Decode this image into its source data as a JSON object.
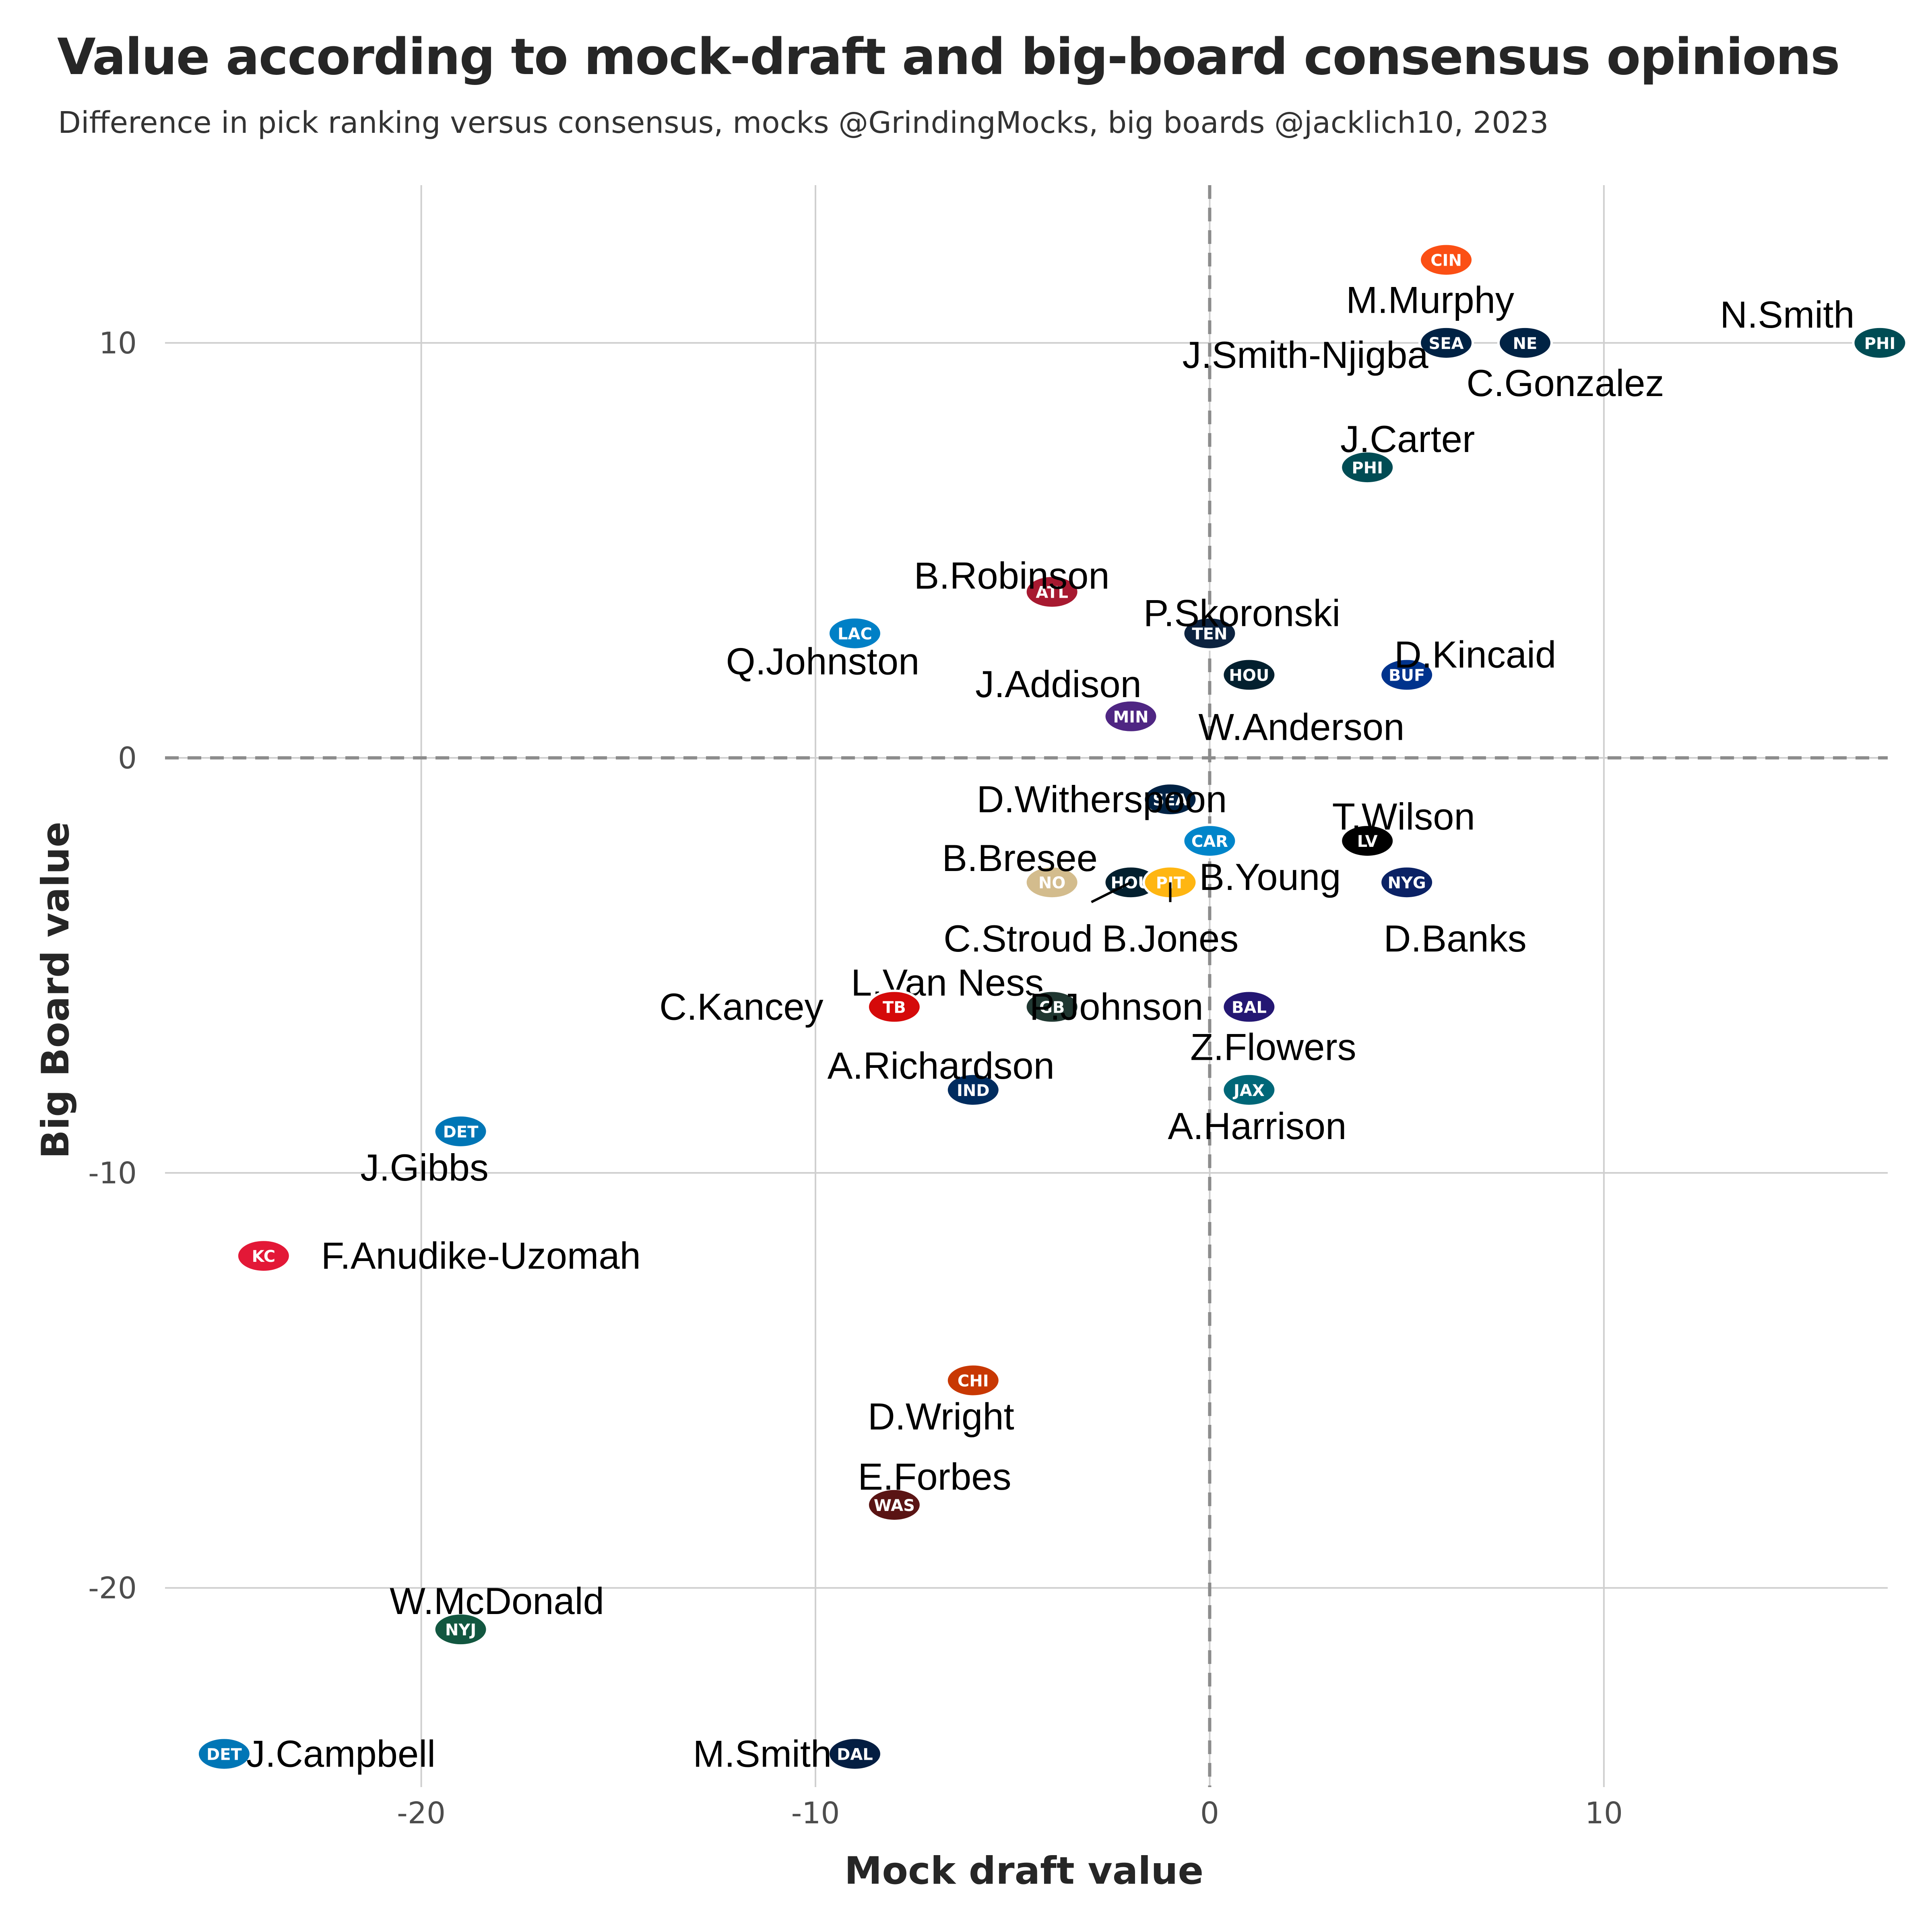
{
  "title": "Value according to mock-draft and big-board consensus opinions",
  "subtitle": "Difference in pick ranking versus consensus, mocks @GrindingMocks, big boards @jacklich10, 2023",
  "chart_data": {
    "type": "scatter",
    "title": "Value according to mock-draft and big-board consensus opinions",
    "subtitle": "Difference in pick ranking versus consensus, mocks @GrindingMocks, big boards @jacklich10, 2023",
    "xlabel": "Mock draft value",
    "ylabel": "Big Board value",
    "xlim": [
      -26.5,
      17.2
    ],
    "ylim": [
      -24.8,
      13.8
    ],
    "xticks": [
      -20,
      -10,
      0,
      10
    ],
    "yticks": [
      10,
      0,
      -10,
      -20
    ],
    "grid": true,
    "reference_lines": [
      {
        "axis": "x",
        "value": 0,
        "style": "dashed"
      },
      {
        "axis": "y",
        "value": 0,
        "style": "dashed"
      }
    ],
    "marker": "team-logo",
    "points": [
      {
        "label": "N.Smith",
        "team": "PHI",
        "color": "#004C54",
        "x": 17,
        "y": 10
      },
      {
        "label": "M.Murphy",
        "team": "CIN",
        "color": "#FB4F14",
        "x": 6,
        "y": 12
      },
      {
        "label": "J.Smith-Njigba",
        "team": "SEA",
        "color": "#002244",
        "x": 6,
        "y": 10
      },
      {
        "label": "C.Gonzalez",
        "team": "NE",
        "color": "#002244",
        "x": 8,
        "y": 10
      },
      {
        "label": "J.Carter",
        "team": "PHI",
        "color": "#004C54",
        "x": 4,
        "y": 7
      },
      {
        "label": "B.Robinson",
        "team": "ATL",
        "color": "#A71930",
        "x": -4,
        "y": 4
      },
      {
        "label": "Q.Johnston",
        "team": "LAC",
        "color": "#0080C6",
        "x": -9,
        "y": 3
      },
      {
        "label": "P.Skoronski",
        "team": "TEN",
        "color": "#0C2340",
        "x": 0,
        "y": 3
      },
      {
        "label": "D.Kincaid",
        "team": "BUF",
        "color": "#00338D",
        "x": 5,
        "y": 2
      },
      {
        "label": "W.Anderson",
        "team": "HOU",
        "color": "#03202F",
        "x": 1,
        "y": 2
      },
      {
        "label": "J.Addison",
        "team": "MIN",
        "color": "#4F2683",
        "x": -2,
        "y": 1
      },
      {
        "label": "D.Witherspoon",
        "team": "SEA",
        "color": "#002244",
        "x": -1,
        "y": -1
      },
      {
        "label": "T.Wilson",
        "team": "LV",
        "color": "#000000",
        "x": 4,
        "y": -2
      },
      {
        "label": "B.Young",
        "team": "CAR",
        "color": "#0085CA",
        "x": 0,
        "y": -2
      },
      {
        "label": "B.Bresee",
        "team": "NO",
        "color": "#D3BC8D",
        "x": -4,
        "y": -3
      },
      {
        "label": "C.Stroud",
        "team": "HOU",
        "color": "#03202F",
        "x": -2,
        "y": -3
      },
      {
        "label": "B.Jones",
        "team": "PIT",
        "color": "#FFB612",
        "x": -1,
        "y": -3
      },
      {
        "label": "D.Banks",
        "team": "NYG",
        "color": "#0B2265",
        "x": 5,
        "y": -3
      },
      {
        "label": "L.Van Ness",
        "team": "GB",
        "color": "#203731",
        "x": -4,
        "y": -6
      },
      {
        "label": "C.Kancey",
        "team": "TB",
        "color": "#D50A0A",
        "x": -8,
        "y": -6
      },
      {
        "label": "P.Johnson",
        "team": "GB",
        "color": "#203731",
        "x": -4,
        "y": -6
      },
      {
        "label": "Z.Flowers",
        "team": "BAL",
        "color": "#241773",
        "x": 1,
        "y": -6
      },
      {
        "label": "A.Richardson",
        "team": "IND",
        "color": "#002C5F",
        "x": -6,
        "y": -8
      },
      {
        "label": "A.Harrison",
        "team": "JAX",
        "color": "#006778",
        "x": 1,
        "y": -8
      },
      {
        "label": "J.Gibbs",
        "team": "DET",
        "color": "#0076B6",
        "x": -19,
        "y": -9
      },
      {
        "label": "F.Anudike-Uzomah",
        "team": "KC",
        "color": "#E31837",
        "x": -24,
        "y": -12
      },
      {
        "label": "D.Wright",
        "team": "CHI",
        "color": "#C83803",
        "x": -6,
        "y": -15
      },
      {
        "label": "E.Forbes",
        "team": "WAS",
        "color": "#5A1414",
        "x": -8,
        "y": -18
      },
      {
        "label": "W.McDonald",
        "team": "NYJ",
        "color": "#125740",
        "x": -19,
        "y": -21
      },
      {
        "label": "J.Campbell",
        "team": "DET",
        "color": "#0076B6",
        "x": -25,
        "y": -24
      },
      {
        "label": "M.Smith",
        "team": "DAL",
        "color": "#041E42",
        "x": -9,
        "y": -24
      }
    ]
  }
}
